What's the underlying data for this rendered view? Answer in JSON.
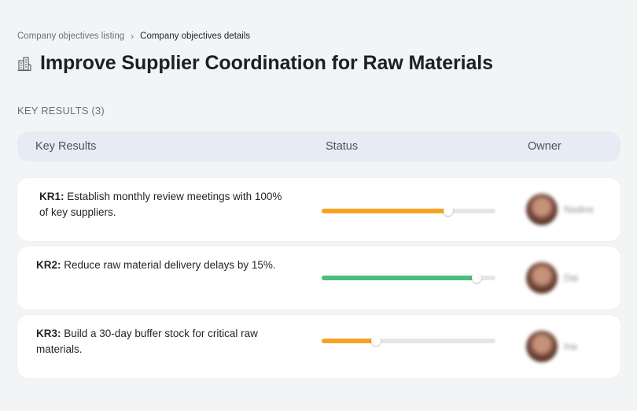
{
  "breadcrumb": {
    "parent": "Company objectives listing",
    "separator": "›",
    "current": "Company objectives details"
  },
  "title": {
    "icon": "building-icon",
    "text": "Improve Supplier Coordination for Raw Materials"
  },
  "section": {
    "label": "KEY RESULTS (3)"
  },
  "table": {
    "headers": {
      "key_results": "Key Results",
      "status": "Status",
      "owner": "Owner"
    }
  },
  "key_results": [
    {
      "code": "KR1:",
      "text": " Establish monthly review meetings with 100% of key suppliers.",
      "progress": 0.73,
      "bar_color": "#f6a323",
      "owner": {
        "name": "Nadine"
      }
    },
    {
      "code": "KR2:",
      "text": " Reduce raw material delivery delays by 15%.",
      "progress": 0.89,
      "bar_color": "#4cbd7e",
      "owner": {
        "name": "Dai"
      }
    },
    {
      "code": "KR3:",
      "text": " Build a 30-day buffer stock for critical raw materials.",
      "progress": 0.31,
      "bar_color": "#f6a323",
      "owner": {
        "name": "Ina"
      }
    }
  ]
}
